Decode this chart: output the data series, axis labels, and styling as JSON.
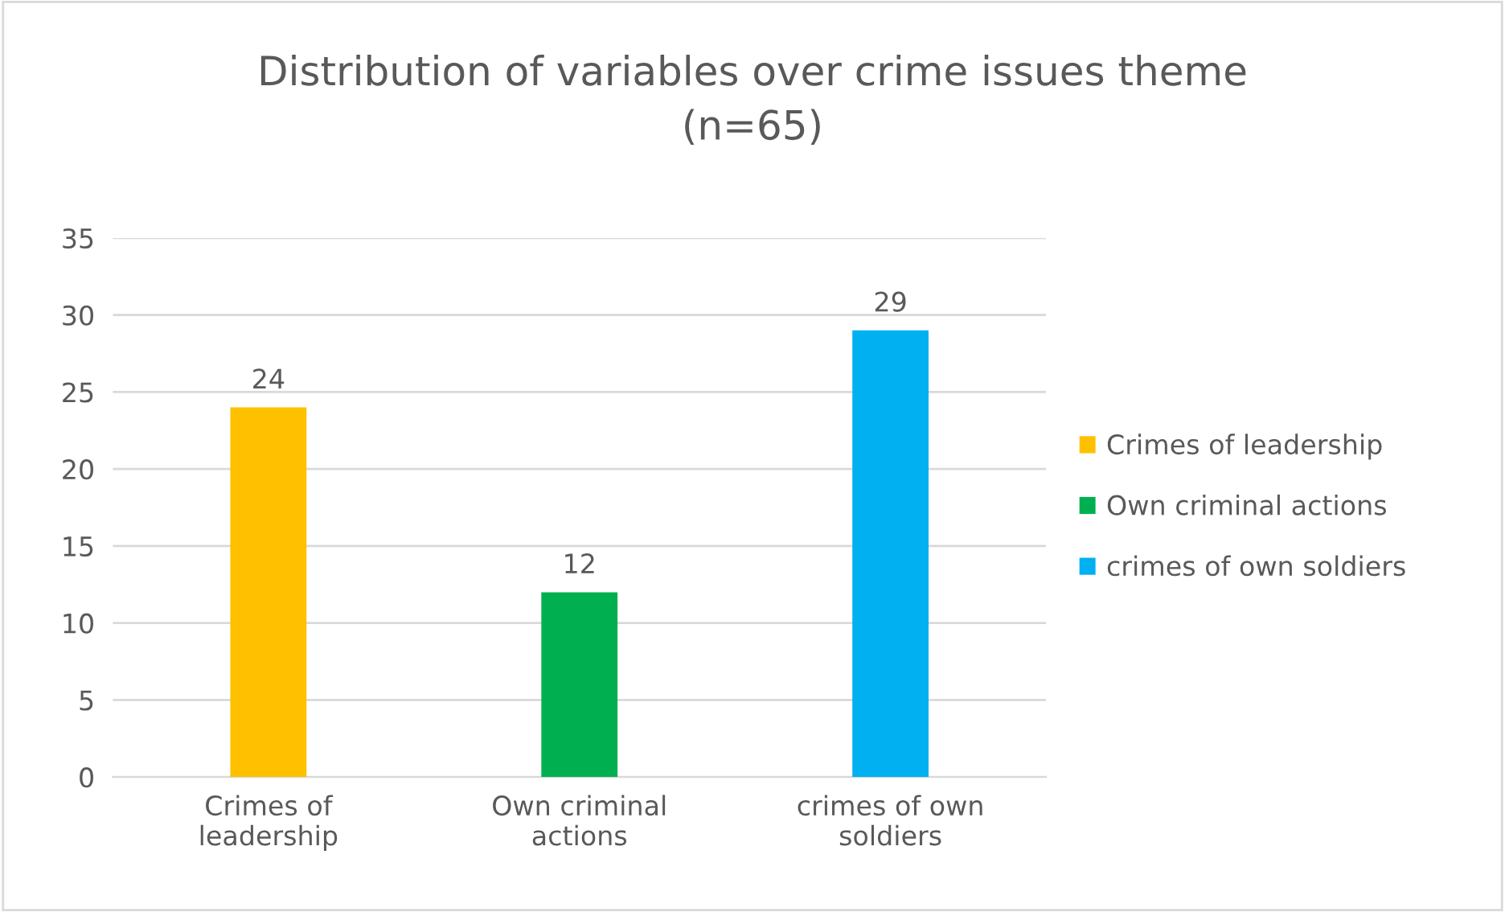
{
  "chart_data": {
    "type": "bar",
    "title": "Distribution of variables over crime issues theme\n(n=65)",
    "categories": [
      "Crimes of\nleadership",
      "Own criminal\nactions",
      "crimes of own\nsoldiers"
    ],
    "series": [
      {
        "name": "Crimes of leadership",
        "color": "#ffc000",
        "values": [
          24,
          null,
          null
        ]
      },
      {
        "name": "Own criminal actions",
        "color": "#00b050",
        "values": [
          null,
          12,
          null
        ]
      },
      {
        "name": "crimes of own soldiers",
        "color": "#00b0f0",
        "values": [
          null,
          null,
          29
        ]
      }
    ],
    "ylim": [
      0,
      35
    ],
    "yticks": [
      0,
      5,
      10,
      15,
      20,
      25,
      30,
      35
    ],
    "grid": "y",
    "legend": "right",
    "data_labels": true
  }
}
